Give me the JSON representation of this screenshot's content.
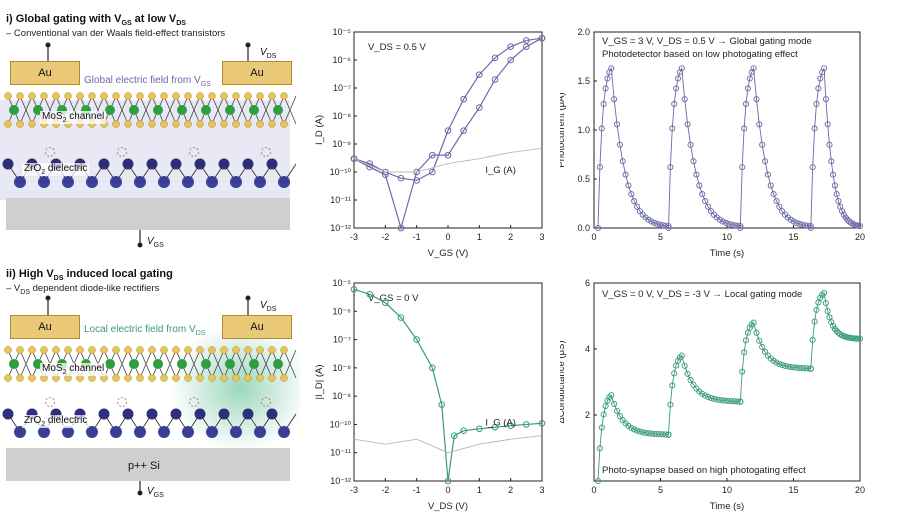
{
  "left": {
    "panel_i": {
      "title": "i) Global gating with V",
      "title_sub1": "GS",
      "title_mid": " at low V",
      "title_sub2": "DS",
      "subtitle": "– Conventional van der Waals field-effect transistors",
      "au_left": "Au",
      "au_right": "Au",
      "vds": "V",
      "vds_sub": "DS",
      "field_label": "Global electric field from V",
      "field_sub": "GS",
      "channel": "MoS",
      "channel_sub": "2",
      "channel_rest": " channel",
      "dielectric": "ZrO",
      "dielectric_sub": "2",
      "dielectric_rest": " dielectric",
      "vgs": "V",
      "vgs_sub": "GS"
    },
    "panel_ii": {
      "title": "ii) High V",
      "title_sub": "DS",
      "title_rest": " induced local gating",
      "subtitle": "– V",
      "subtitle_sub": "DS",
      "subtitle_rest": " dependent diode-like rectifiers",
      "au_left": "Au",
      "au_right": "Au",
      "vds": "V",
      "vds_sub": "DS",
      "field_label": "Local electric field from V",
      "field_sub": "DS",
      "channel": "MoS",
      "channel_sub": "2",
      "channel_rest": " channel",
      "dielectric": "ZrO",
      "dielectric_sub": "2",
      "dielectric_rest": " dielectric",
      "substrate": "p++ Si",
      "vgs": "V",
      "vgs_sub": "GS"
    }
  },
  "colors": {
    "purple": "#6a6aa8",
    "green": "#3a9a7a",
    "gold": "#e8c35a",
    "mo": "#2e9e3e",
    "zr": "#2d2f7a"
  },
  "chart_data": [
    {
      "type": "line",
      "panel": "top-middle",
      "annotation": "V_DS = 0.5 V",
      "xlabel": "V_GS (V)",
      "ylabel": "I_D (A)",
      "xlim": [
        -3,
        3
      ],
      "ylim": [
        1e-12,
        1e-05
      ],
      "yscale": "log",
      "xticks": [
        "-3",
        "-2",
        "-1",
        "0",
        "1",
        "2",
        "3"
      ],
      "yticks": [
        "10⁻¹²",
        "10⁻¹¹",
        "10⁻¹⁰",
        "10⁻⁹",
        "10⁻⁸",
        "10⁻⁷",
        "10⁻⁶",
        "10⁻⁵"
      ],
      "series": [
        {
          "name": "I_D forward",
          "x": [
            -3,
            -2.5,
            -2,
            -1.5,
            -1,
            -0.5,
            0,
            0.5,
            1,
            1.5,
            2,
            2.5,
            3
          ],
          "y": [
            3e-10,
            2e-10,
            1e-10,
            6e-11,
            5e-11,
            1e-10,
            3e-09,
            4e-08,
            3e-07,
            1.2e-06,
            3e-06,
            5e-06,
            6e-06
          ]
        },
        {
          "name": "I_D reverse",
          "x": [
            -3,
            -2.5,
            -2,
            -1.5,
            -1,
            -0.5,
            0,
            0.5,
            1,
            1.5,
            2,
            2.5,
            3
          ],
          "y": [
            3e-10,
            1.5e-10,
            8e-11,
            1e-12,
            1e-10,
            4e-10,
            4e-10,
            3e-09,
            2e-08,
            2e-07,
            1e-06,
            3e-06,
            6e-06
          ]
        },
        {
          "name": "I_G (A)",
          "x": [
            -3,
            -2,
            -1,
            0,
            1,
            2,
            3
          ],
          "y": [
            3e-10,
            1e-10,
            1e-10,
            2e-10,
            3e-10,
            5e-10,
            7e-10
          ]
        }
      ],
      "legend": "I_G (A)"
    },
    {
      "type": "line",
      "panel": "top-right",
      "annotation_1": "V_GS = 3 V, V_DS = 0.5 V → Global gating mode",
      "annotation_2": "Photodetector based on low photogating effect",
      "xlabel": "Time (s)",
      "ylabel": "Photocurrent (μA)",
      "xlim": [
        0,
        20
      ],
      "ylim": [
        0,
        2.0
      ],
      "xticks": [
        "0",
        "5",
        "10",
        "15",
        "20"
      ],
      "yticks": [
        "0.0",
        "0.5",
        "1.0",
        "1.5",
        "2.0"
      ],
      "pulses": [
        {
          "on": 0.3,
          "off": 1.3,
          "peak": 1.63
        },
        {
          "on": 5.6,
          "off": 6.6,
          "peak": 1.63
        },
        {
          "on": 11.0,
          "off": 12.0,
          "peak": 1.63
        },
        {
          "on": 16.3,
          "off": 17.3,
          "peak": 1.63
        }
      ]
    },
    {
      "type": "line",
      "panel": "bottom-middle",
      "annotation": "V_GS = 0 V",
      "xlabel": "V_DS (V)",
      "ylabel": "|I_D| (A)",
      "xlim": [
        -3,
        3
      ],
      "ylim": [
        1e-12,
        1e-05
      ],
      "yscale": "log",
      "xticks": [
        "-3",
        "-2",
        "-1",
        "0",
        "1",
        "2",
        "3"
      ],
      "yticks": [
        "10⁻¹²",
        "10⁻¹¹",
        "10⁻¹⁰",
        "10⁻⁹",
        "10⁻⁸",
        "10⁻⁷",
        "10⁻⁶",
        "10⁻⁵"
      ],
      "series": [
        {
          "name": "|I_D|",
          "x": [
            -3,
            -2.5,
            -2,
            -1.5,
            -1,
            -0.5,
            -0.2,
            0,
            0.2,
            0.5,
            1,
            1.5,
            2,
            2.5,
            3
          ],
          "y": [
            6e-06,
            4e-06,
            2e-06,
            6e-07,
            1e-07,
            1e-08,
            5e-10,
            1e-12,
            4e-11,
            6e-11,
            7e-11,
            8e-11,
            9e-11,
            1e-10,
            1.1e-10
          ]
        },
        {
          "name": "I_G (A)",
          "x": [
            -3,
            -2,
            -1,
            0,
            1,
            2,
            3
          ],
          "y": [
            3e-11,
            2e-11,
            3e-11,
            1e-11,
            2e-11,
            3e-11,
            4e-11
          ]
        }
      ],
      "legend": "I_G (A)"
    },
    {
      "type": "line",
      "panel": "bottom-right",
      "annotation_1": "V_GS = 0 V, V_DS = -3 V → Local gating mode",
      "annotation_2": "Photo-synapse based on high photogating effect",
      "xlabel": "Time (s)",
      "ylabel": "ΔConductance (μS)",
      "xlim": [
        0,
        20
      ],
      "ylim": [
        0,
        6
      ],
      "xticks": [
        "0",
        "5",
        "10",
        "15",
        "20"
      ],
      "yticks": [
        "2",
        "4",
        "6"
      ],
      "pulses": [
        {
          "on": 0.3,
          "off": 1.3,
          "base_start": 0.0,
          "peak": 2.6,
          "base_end": 1.4
        },
        {
          "on": 5.6,
          "off": 6.6,
          "base_start": 1.4,
          "peak": 3.8,
          "base_end": 2.4
        },
        {
          "on": 11.0,
          "off": 12.0,
          "base_start": 2.4,
          "peak": 4.8,
          "base_end": 3.4
        },
        {
          "on": 16.3,
          "off": 17.3,
          "base_start": 3.4,
          "peak": 5.7,
          "base_end": 4.3
        }
      ]
    }
  ]
}
